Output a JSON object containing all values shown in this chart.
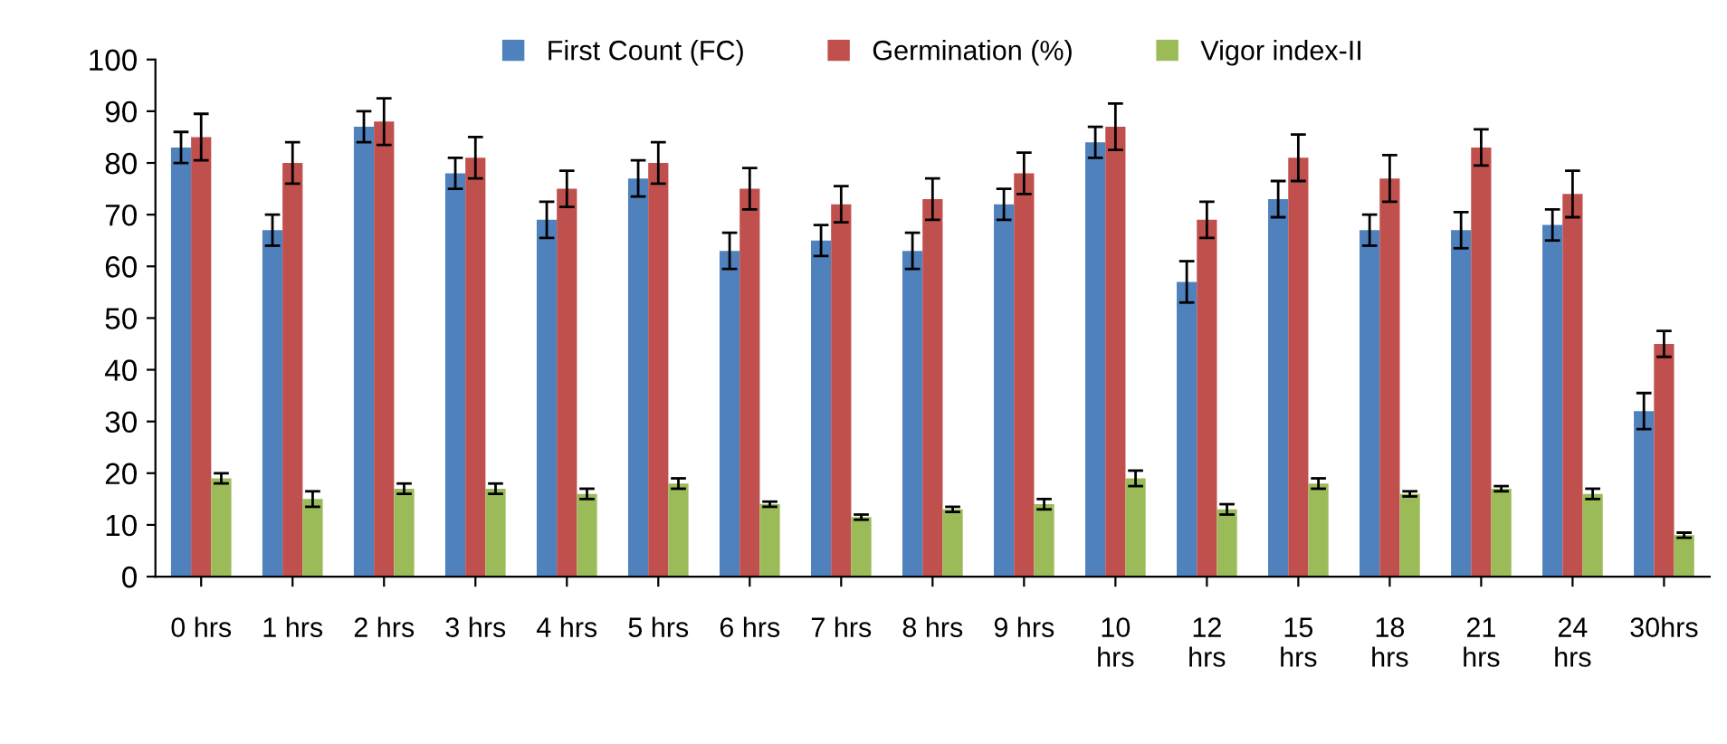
{
  "chart_data": {
    "type": "bar",
    "categories": [
      "0 hrs",
      "1 hrs",
      "2 hrs",
      "3 hrs",
      "4 hrs",
      "5 hrs",
      "6 hrs",
      "7 hrs",
      "8 hrs",
      "9 hrs",
      "10\nhrs",
      "12\nhrs",
      "15\nhrs",
      "18\nhrs",
      "21\nhrs",
      "24\nhrs",
      "30hrs"
    ],
    "series": [
      {
        "name": "First Count (FC)",
        "color": "#4f81bd",
        "values": [
          83,
          67,
          87,
          78,
          69,
          77,
          63,
          65,
          63,
          72,
          84,
          57,
          73,
          67,
          67,
          68,
          32
        ],
        "errors": [
          3,
          3,
          3,
          3,
          3.5,
          3.5,
          3.5,
          3,
          3.5,
          3,
          3,
          4,
          3.5,
          3,
          3.5,
          3,
          3.5
        ]
      },
      {
        "name": "Germination (%)",
        "color": "#c0504d",
        "values": [
          85,
          80,
          88,
          81,
          75,
          80,
          75,
          72,
          73,
          78,
          87,
          69,
          81,
          77,
          83,
          74,
          45
        ],
        "errors": [
          4.5,
          4,
          4.5,
          4,
          3.5,
          4,
          4,
          3.5,
          4,
          4,
          4.5,
          3.5,
          4.5,
          4.5,
          3.5,
          4.5,
          2.5
        ]
      },
      {
        "name": "Vigor index-II",
        "color": "#9bbb59",
        "values": [
          19,
          15,
          17,
          17,
          16,
          18,
          14,
          11.5,
          13,
          14,
          19,
          13,
          18,
          16,
          17,
          16,
          8
        ],
        "errors": [
          1,
          1.5,
          1,
          1,
          1,
          1,
          0.5,
          0.5,
          0.5,
          1,
          1.5,
          1,
          1,
          0.5,
          0.5,
          1,
          0.5
        ]
      }
    ],
    "ylim": [
      0,
      100
    ],
    "yticks": [
      0,
      10,
      20,
      30,
      40,
      50,
      60,
      70,
      80,
      90,
      100
    ],
    "grid": false,
    "legend": "top"
  }
}
